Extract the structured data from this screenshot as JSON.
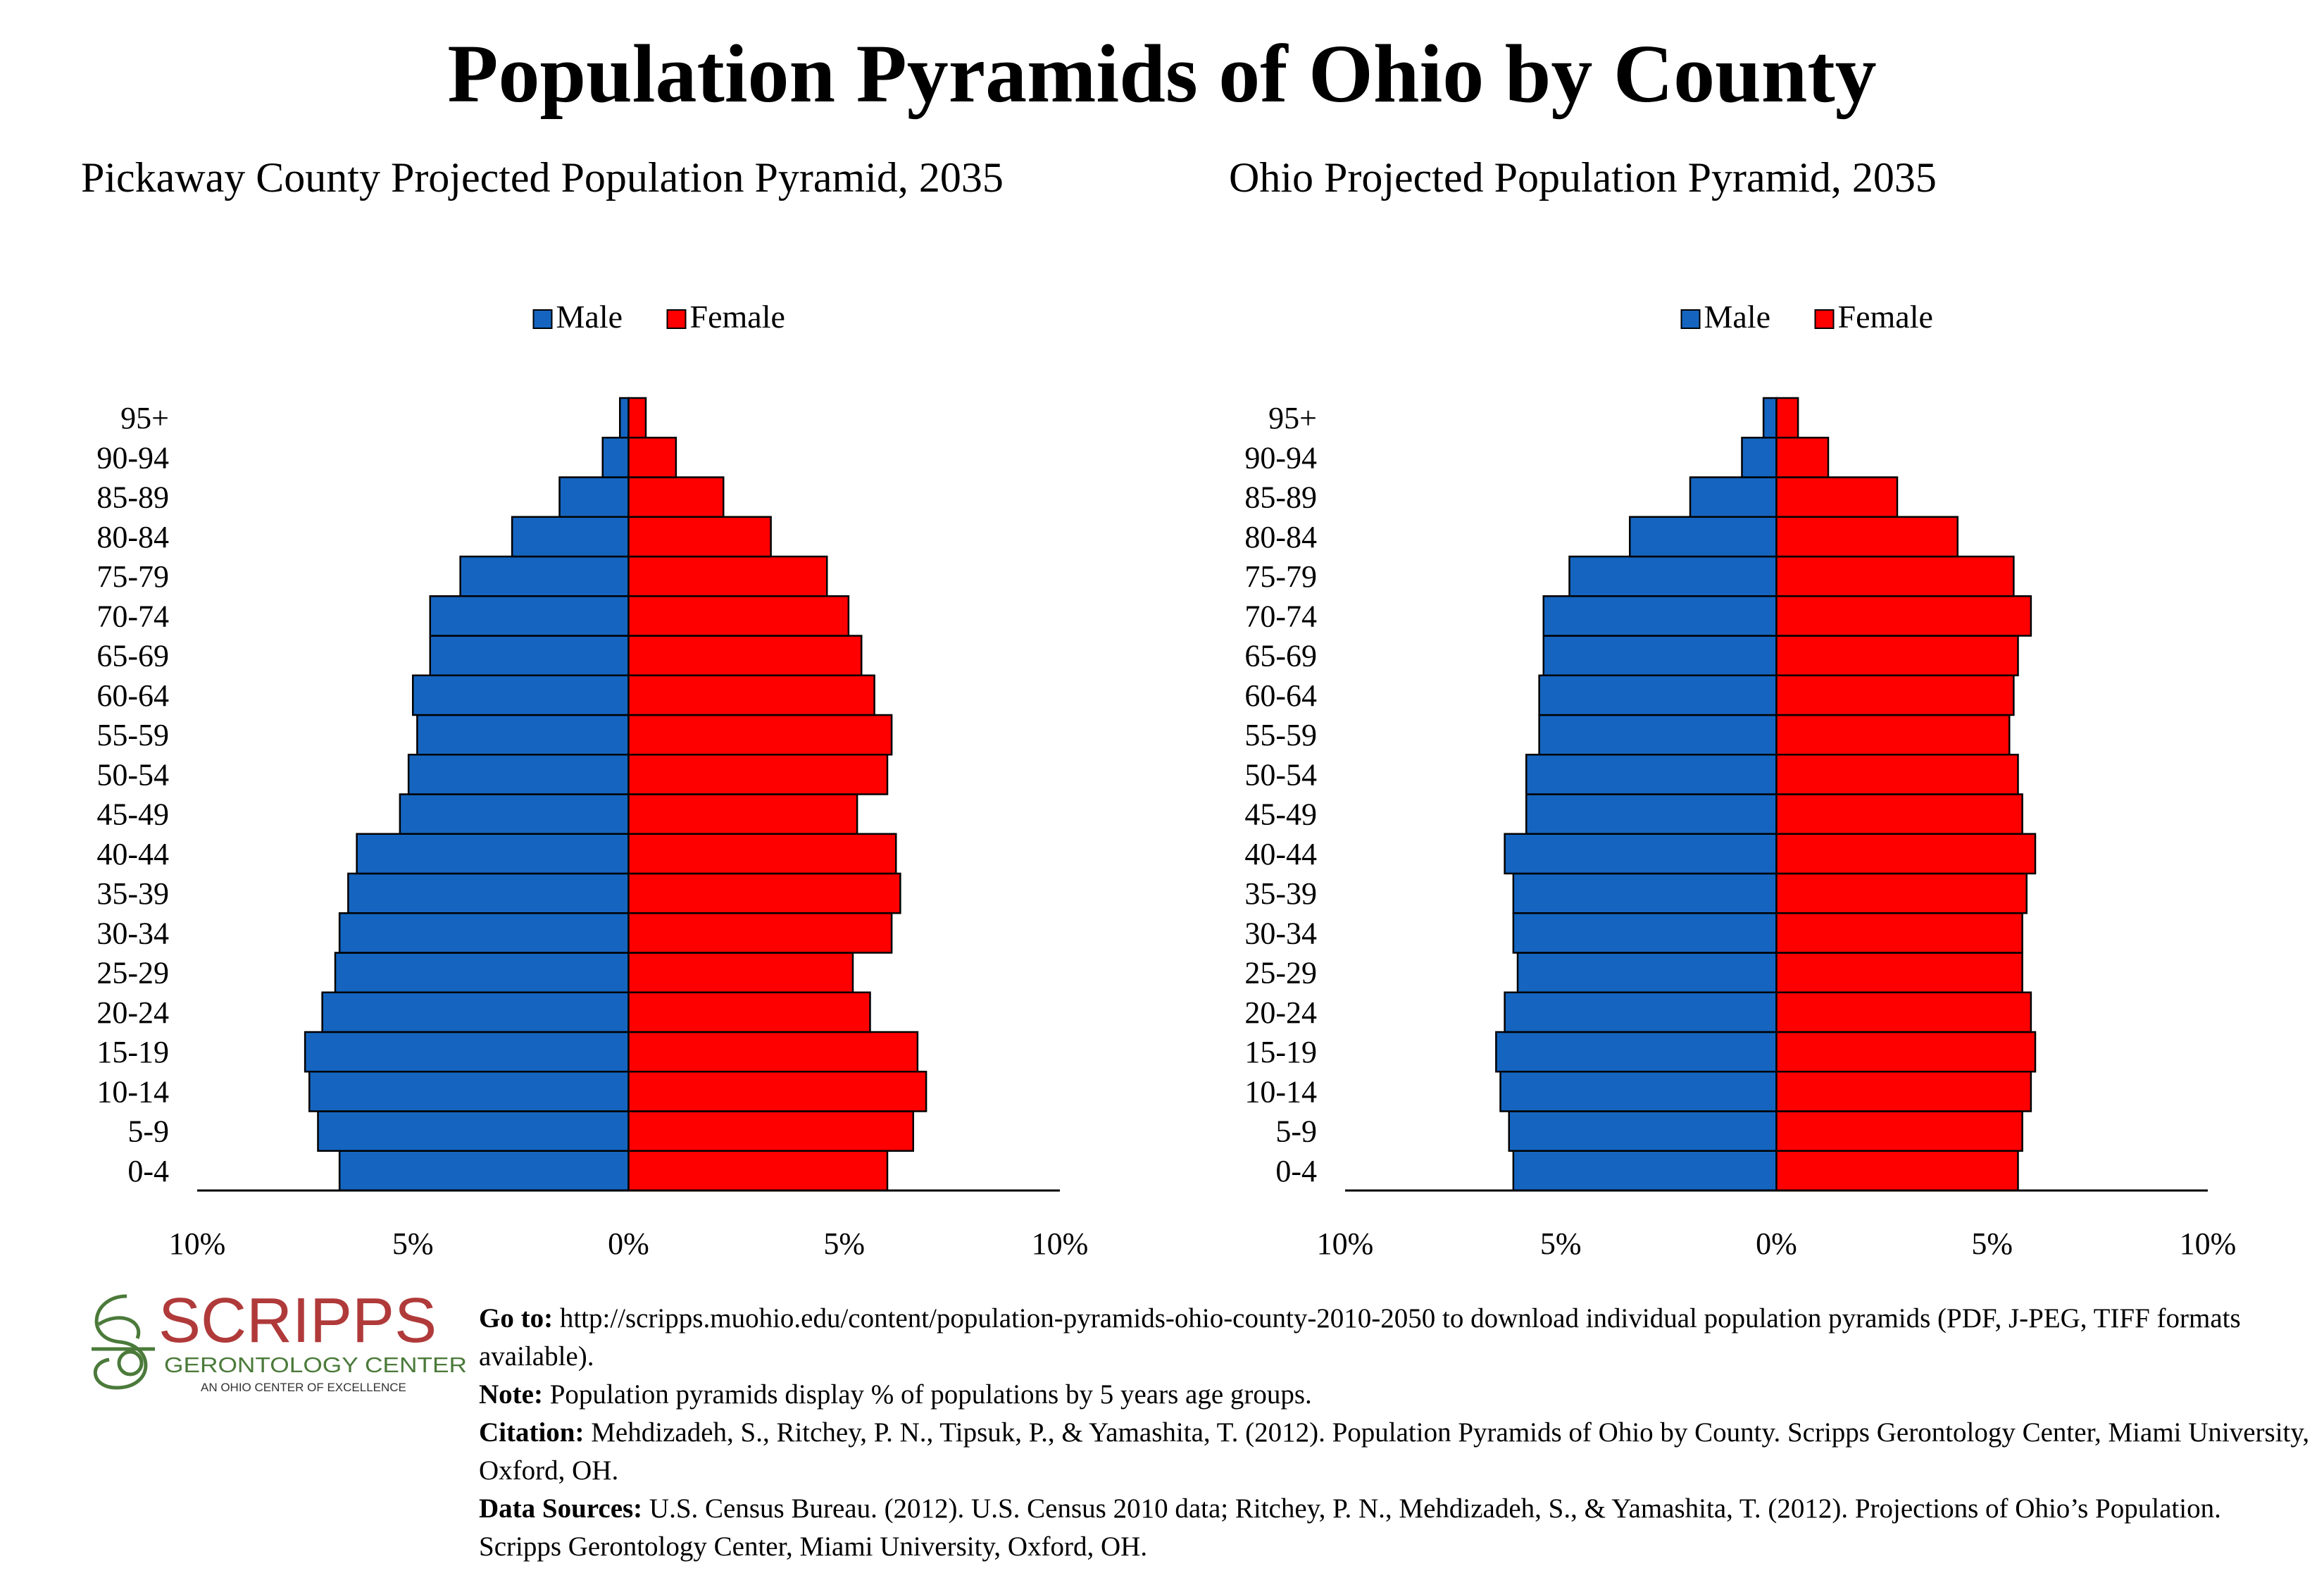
{
  "title": "Population Pyramids of Ohio by County",
  "colors": {
    "male": "#1565C0",
    "female": "#FF0000",
    "logo_red": "#B03A3A",
    "logo_green": "#4B7A3A"
  },
  "logo": {
    "name": "SCRIPPS",
    "subtitle": "GERONTOLOGY CENTER",
    "tagline": "AN OHIO CENTER OF EXCELLENCE"
  },
  "notes": {
    "goto_label": "Go to:",
    "goto_text": "http://scripps.muohio.edu/content/population-pyramids-ohio-county-2010-2050 to download individual population pyramids (PDF, J-PEG, TIFF formats available).",
    "note_label": "Note:",
    "note_text": "Population pyramids display % of populations by 5 years age groups.",
    "citation_label": "Citation:",
    "citation_text": "Mehdizadeh, S., Ritchey, P. N., Tipsuk, P., & Yamashita, T. (2012). Population Pyramids of Ohio by County. Scripps Gerontology Center, Miami University, Oxford, OH.",
    "sources_label": "Data Sources:",
    "sources_text": "U.S. Census Bureau. (2012). U.S. Census 2010 data; Ritchey, P. N., Mehdizadeh, S., & Yamashita, T. (2012). Projections of Ohio’s Population. Scripps Gerontology Center, Miami University, Oxford, OH."
  },
  "chart_data": [
    {
      "type": "bar",
      "orientation": "horizontal-pyramid",
      "title": "Pickaway County Projected Population Pyramid, 2035",
      "legend_position": "top-center",
      "categories": [
        "0-4",
        "5-9",
        "10-14",
        "15-19",
        "20-24",
        "25-29",
        "30-34",
        "35-39",
        "40-44",
        "45-49",
        "50-54",
        "55-59",
        "60-64",
        "65-69",
        "70-74",
        "75-79",
        "80-84",
        "85-89",
        "90-94",
        "95+"
      ],
      "series": [
        {
          "name": "Male",
          "values": [
            6.7,
            7.2,
            7.4,
            7.5,
            7.1,
            6.8,
            6.7,
            6.5,
            6.3,
            5.3,
            5.1,
            4.9,
            5.0,
            4.6,
            4.6,
            3.9,
            2.7,
            1.6,
            0.6,
            0.2
          ]
        },
        {
          "name": "Female",
          "values": [
            6.0,
            6.6,
            6.9,
            6.7,
            5.6,
            5.2,
            6.1,
            6.3,
            6.2,
            5.3,
            6.0,
            6.1,
            5.7,
            5.4,
            5.1,
            4.6,
            3.3,
            2.2,
            1.1,
            0.4
          ]
        }
      ],
      "xlim": [
        -10,
        10
      ],
      "xticks": [
        "10%",
        "5%",
        "0%",
        "5%",
        "10%"
      ]
    },
    {
      "type": "bar",
      "orientation": "horizontal-pyramid",
      "title": "Ohio Projected Population Pyramid, 2035",
      "legend_position": "top-center",
      "categories": [
        "0-4",
        "5-9",
        "10-14",
        "15-19",
        "20-24",
        "25-29",
        "30-34",
        "35-39",
        "40-44",
        "45-49",
        "50-54",
        "55-59",
        "60-64",
        "65-69",
        "70-74",
        "75-79",
        "80-84",
        "85-89",
        "90-94",
        "95+"
      ],
      "series": [
        {
          "name": "Male",
          "values": [
            6.1,
            6.2,
            6.4,
            6.5,
            6.3,
            6.0,
            6.1,
            6.1,
            6.3,
            5.8,
            5.8,
            5.5,
            5.5,
            5.4,
            5.4,
            4.8,
            3.4,
            2.0,
            0.8,
            0.3
          ]
        },
        {
          "name": "Female",
          "values": [
            5.6,
            5.7,
            5.9,
            6.0,
            5.9,
            5.7,
            5.7,
            5.8,
            6.0,
            5.7,
            5.6,
            5.4,
            5.5,
            5.6,
            5.9,
            5.5,
            4.2,
            2.8,
            1.2,
            0.5
          ]
        }
      ],
      "xlim": [
        -10,
        10
      ],
      "xticks": [
        "10%",
        "5%",
        "0%",
        "5%",
        "10%"
      ]
    }
  ]
}
